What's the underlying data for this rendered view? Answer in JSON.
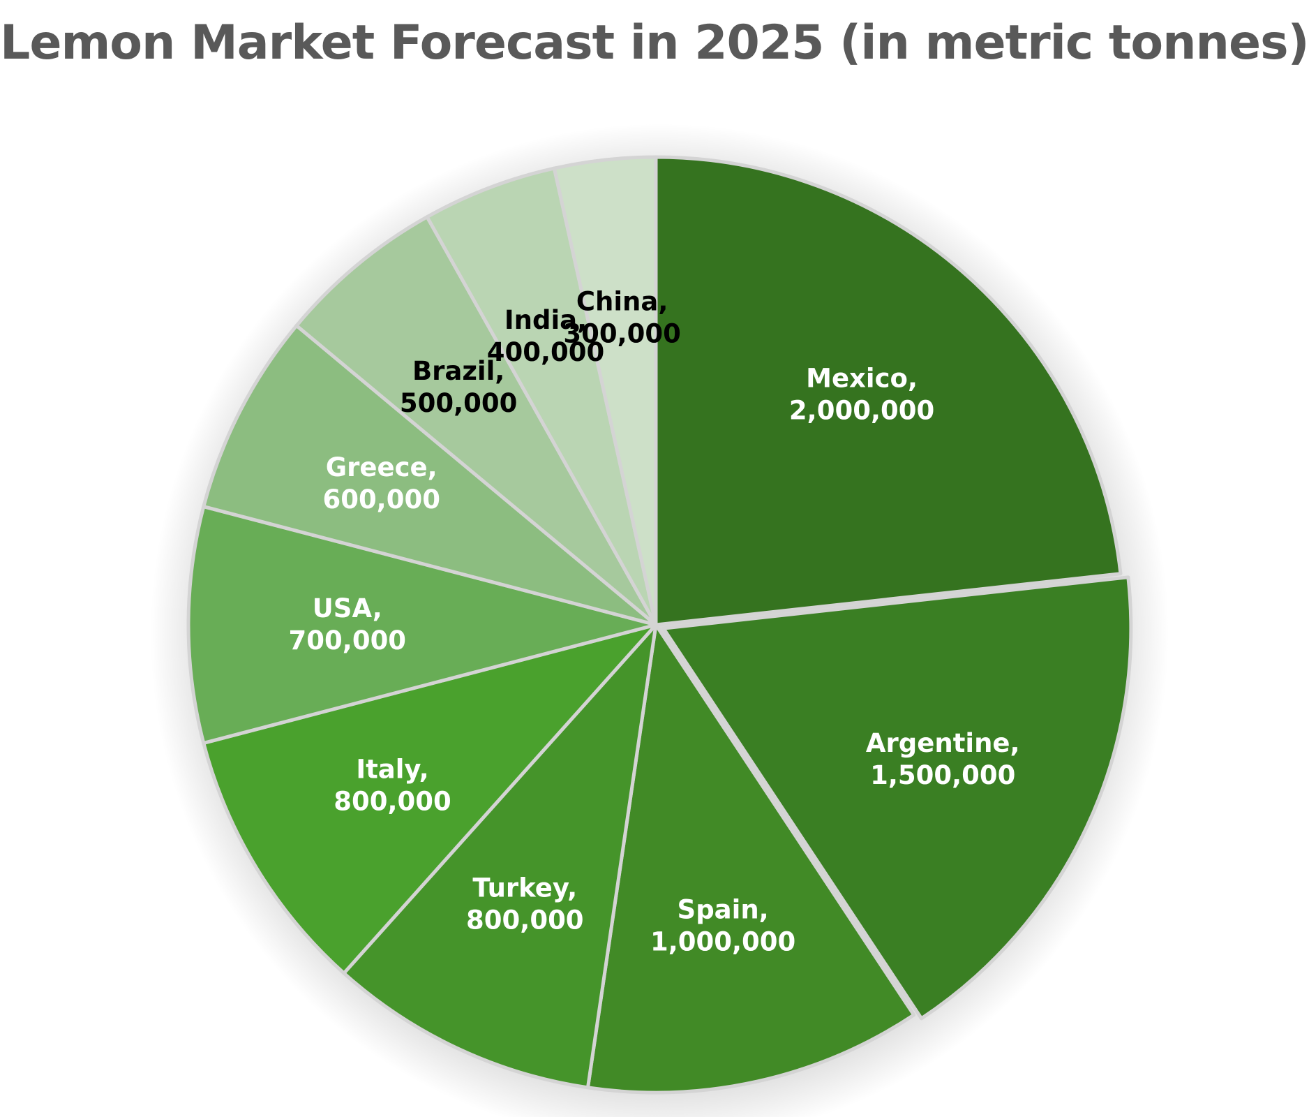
{
  "chart_data": {
    "type": "pie",
    "title": "Lemon Market Forecast in 2025 (in metric tonnes)",
    "slices": [
      {
        "label": "Mexico",
        "value": 2000000,
        "value_text": "2,000,000",
        "color": "#35731f",
        "label_color": "#ffffff"
      },
      {
        "label": "Argentine",
        "value": 1500000,
        "value_text": "1,500,000",
        "color": "#3a7f23",
        "label_color": "#ffffff"
      },
      {
        "label": "Spain",
        "value": 1000000,
        "value_text": "1,000,000",
        "color": "#418a26",
        "label_color": "#ffffff"
      },
      {
        "label": "Turkey",
        "value": 800000,
        "value_text": "800,000",
        "color": "#45942a",
        "label_color": "#ffffff"
      },
      {
        "label": "Italy",
        "value": 800000,
        "value_text": "800,000",
        "color": "#4aa12d",
        "label_color": "#ffffff"
      },
      {
        "label": "USA",
        "value": 700000,
        "value_text": "700,000",
        "color": "#68ad56",
        "label_color": "#ffffff"
      },
      {
        "label": "Greece",
        "value": 600000,
        "value_text": "600,000",
        "color": "#8cbd80",
        "label_color": "#ffffff"
      },
      {
        "label": "Brazil",
        "value": 500000,
        "value_text": "500,000",
        "color": "#a6c99d",
        "label_color": "#000000"
      },
      {
        "label": "India",
        "value": 400000,
        "value_text": "400,000",
        "color": "#bad5b3",
        "label_color": "#000000"
      },
      {
        "label": "China",
        "value": 300000,
        "value_text": "300,000",
        "color": "#cde0c8",
        "label_color": "#000000"
      }
    ],
    "exploded": [
      "Argentine"
    ],
    "legend": "none",
    "separator_color": "#d4d4d4"
  }
}
